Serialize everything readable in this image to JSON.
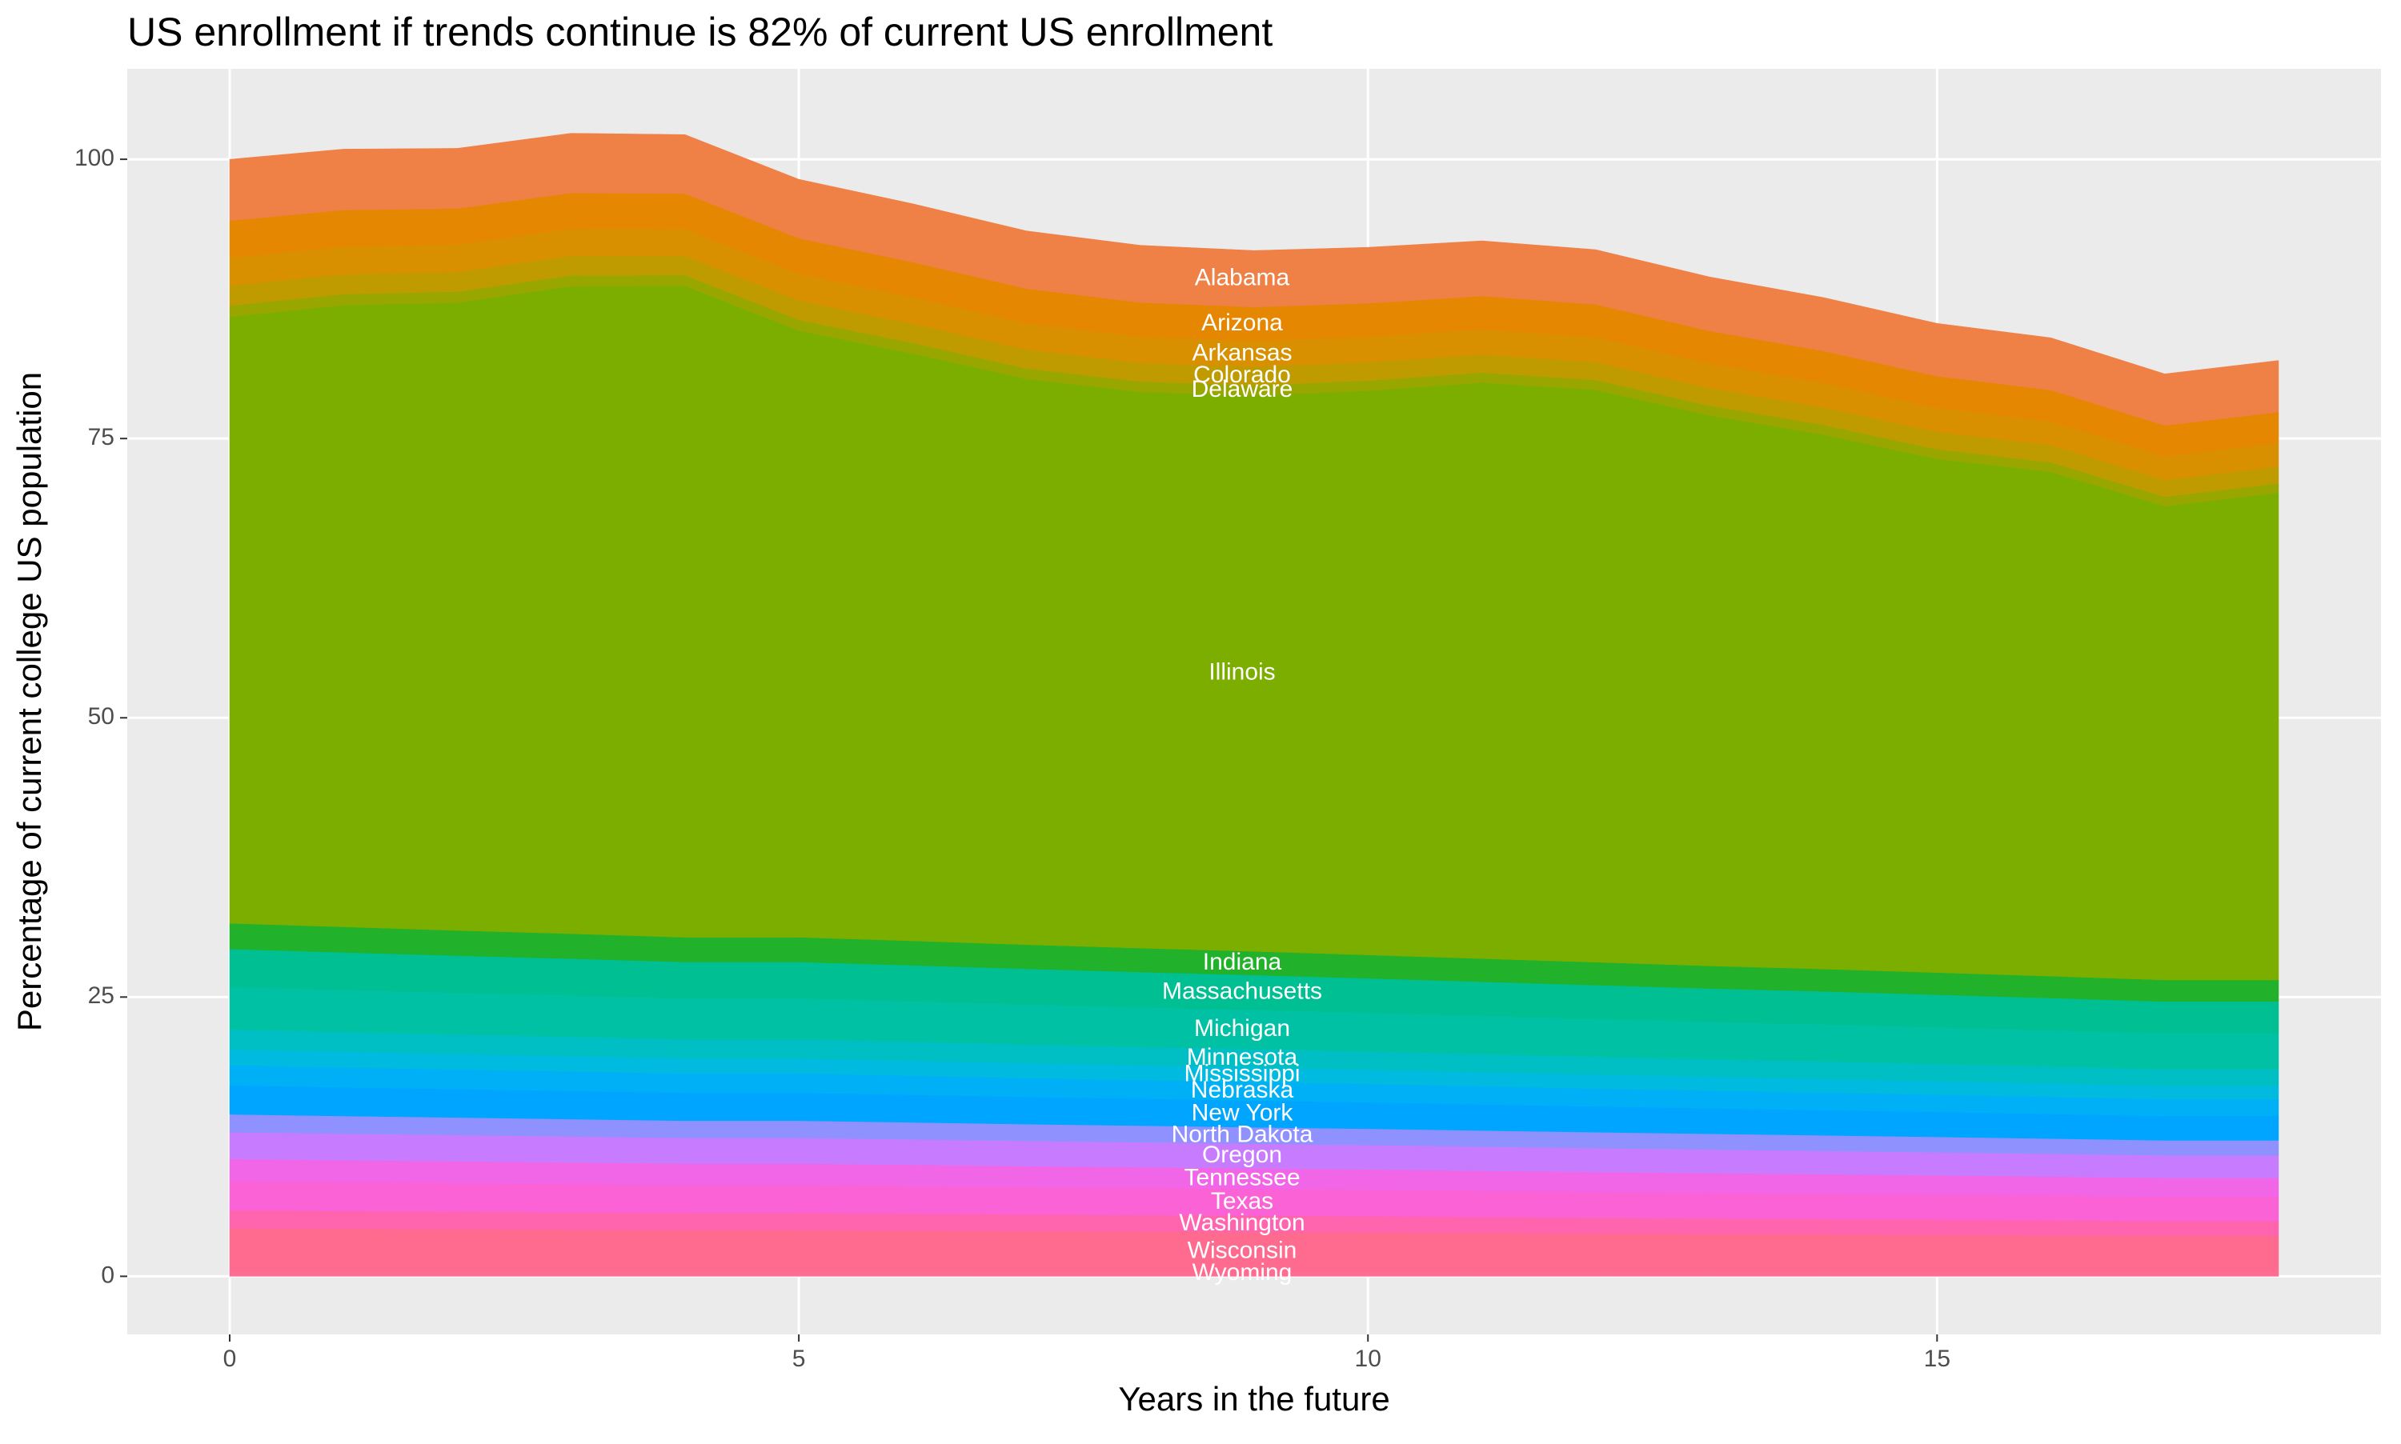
{
  "chart_data": {
    "type": "stacked_area",
    "title": "US enrollment if trends continue is 82% of current US enrollment",
    "x_label": "Years in the future",
    "y_label": "Percentage of current college US population",
    "x": [
      0,
      1,
      2,
      3,
      4,
      5,
      6,
      7,
      8,
      9,
      10,
      11,
      12,
      13,
      14,
      15,
      16,
      17,
      18
    ],
    "xlim": [
      -0.9,
      18.9
    ],
    "xticks": [
      0,
      5,
      10,
      15
    ],
    "ylim": [
      -5.2,
      108.1
    ],
    "yticks": [
      0,
      25,
      50,
      75,
      100
    ],
    "grid": true,
    "series": [
      {
        "name": "Wyoming",
        "color": "#FF6C91",
        "values": [
          0.5,
          0.5,
          0.5,
          0.49,
          0.48,
          0.48,
          0.48,
          0.47,
          0.47,
          0.46,
          0.46,
          0.45,
          0.45,
          0.44,
          0.44,
          0.43,
          0.43,
          0.42,
          0.42
        ]
      },
      {
        "name": "Wisconsin",
        "color": "#FF6B8F",
        "values": [
          3.8,
          3.76,
          3.72,
          3.69,
          3.65,
          3.65,
          3.61,
          3.57,
          3.53,
          3.5,
          3.46,
          3.42,
          3.38,
          3.34,
          3.31,
          3.27,
          3.23,
          3.19,
          3.19
        ]
      },
      {
        "name": "Washington",
        "color": "#FF65AE",
        "values": [
          1.6,
          1.58,
          1.57,
          1.55,
          1.54,
          1.54,
          1.52,
          1.5,
          1.49,
          1.47,
          1.46,
          1.44,
          1.42,
          1.41,
          1.39,
          1.38,
          1.36,
          1.34,
          1.34
        ]
      },
      {
        "name": "Texas",
        "color": "#FA62D6",
        "values": [
          2.6,
          2.57,
          2.55,
          2.52,
          2.5,
          2.5,
          2.47,
          2.44,
          2.42,
          2.39,
          2.37,
          2.34,
          2.31,
          2.29,
          2.26,
          2.24,
          2.21,
          2.18,
          2.18
        ]
      },
      {
        "name": "Tennessee",
        "color": "#F066E6",
        "values": [
          2,
          1.98,
          1.96,
          1.94,
          1.92,
          1.92,
          1.9,
          1.88,
          1.86,
          1.84,
          1.82,
          1.8,
          1.78,
          1.76,
          1.74,
          1.72,
          1.7,
          1.68,
          1.68
        ]
      },
      {
        "name": "Oregon",
        "color": "#C77CFF",
        "values": [
          2.4,
          2.38,
          2.35,
          2.33,
          2.3,
          2.3,
          2.28,
          2.26,
          2.23,
          2.21,
          2.18,
          2.16,
          2.14,
          2.11,
          2.09,
          2.06,
          2.04,
          2.02,
          2.02
        ]
      },
      {
        "name": "North Dakota",
        "color": "#8F91FF",
        "values": [
          1.6,
          1.58,
          1.57,
          1.55,
          1.54,
          1.54,
          1.52,
          1.5,
          1.49,
          1.47,
          1.46,
          1.44,
          1.42,
          1.41,
          1.39,
          1.38,
          1.36,
          1.34,
          1.34
        ]
      },
      {
        "name": "New York",
        "color": "#00A5FF",
        "values": [
          2.6,
          2.57,
          2.55,
          2.52,
          2.5,
          2.5,
          2.47,
          2.44,
          2.42,
          2.39,
          2.37,
          2.34,
          2.31,
          2.29,
          2.26,
          2.24,
          2.21,
          2.18,
          2.18
        ]
      },
      {
        "name": "Nebraska",
        "color": "#00B0F6",
        "values": [
          1.8,
          1.78,
          1.76,
          1.75,
          1.73,
          1.73,
          1.71,
          1.69,
          1.67,
          1.66,
          1.64,
          1.62,
          1.6,
          1.58,
          1.57,
          1.55,
          1.53,
          1.51,
          1.51
        ]
      },
      {
        "name": "Mississippi",
        "color": "#00BAE0",
        "values": [
          1.4,
          1.39,
          1.37,
          1.36,
          1.34,
          1.34,
          1.33,
          1.32,
          1.3,
          1.29,
          1.27,
          1.26,
          1.25,
          1.23,
          1.22,
          1.2,
          1.19,
          1.18,
          1.18
        ]
      },
      {
        "name": "Minnesota",
        "color": "#00BFC4",
        "values": [
          1.8,
          1.78,
          1.76,
          1.75,
          1.73,
          1.73,
          1.71,
          1.69,
          1.67,
          1.66,
          1.64,
          1.62,
          1.6,
          1.58,
          1.57,
          1.55,
          1.53,
          1.51,
          1.51
        ]
      },
      {
        "name": "Michigan",
        "color": "#00C1A3",
        "values": [
          3.8,
          3.76,
          3.72,
          3.69,
          3.65,
          3.65,
          3.61,
          3.57,
          3.53,
          3.5,
          3.46,
          3.42,
          3.38,
          3.34,
          3.31,
          3.27,
          3.23,
          3.19,
          3.19
        ]
      },
      {
        "name": "Massachusetts",
        "color": "#00BF92",
        "values": [
          3.4,
          3.37,
          3.33,
          3.3,
          3.26,
          3.26,
          3.23,
          3.2,
          3.16,
          3.13,
          3.09,
          3.06,
          3.03,
          2.99,
          2.96,
          2.92,
          2.89,
          2.86,
          2.86
        ]
      },
      {
        "name": "Indiana",
        "color": "#21B12A",
        "values": [
          2.3,
          2.28,
          2.25,
          2.23,
          2.21,
          2.21,
          2.19,
          2.16,
          2.14,
          2.12,
          2.09,
          2.07,
          2.05,
          2.02,
          2,
          1.98,
          1.96,
          1.93,
          1.93
        ]
      },
      {
        "name": "Illinois",
        "color": "#7CAE00",
        "values": [
          54.3,
          55.66,
          56.21,
          57.97,
          58.32,
          54.32,
          52.58,
          50.65,
          49.8,
          49.76,
          50.51,
          51.57,
          51.23,
          49.28,
          47.84,
          45.99,
          45.15,
          42.42,
          43.62
        ]
      },
      {
        "name": "Delaware",
        "color": "#9AA600",
        "values": [
          1,
          0.99,
          0.98,
          0.97,
          0.96,
          0.96,
          0.95,
          0.94,
          0.93,
          0.92,
          0.91,
          0.9,
          0.89,
          0.88,
          0.87,
          0.86,
          0.85,
          0.84,
          0.84
        ]
      },
      {
        "name": "Colorado",
        "color": "#C09B00",
        "values": [
          1.8,
          1.78,
          1.76,
          1.75,
          1.73,
          1.73,
          1.71,
          1.69,
          1.67,
          1.66,
          1.64,
          1.62,
          1.6,
          1.58,
          1.57,
          1.55,
          1.53,
          1.51,
          1.51
        ]
      },
      {
        "name": "Arkansas",
        "color": "#D89000",
        "values": [
          2.5,
          2.48,
          2.45,
          2.43,
          2.4,
          2.4,
          2.38,
          2.35,
          2.33,
          2.3,
          2.28,
          2.25,
          2.23,
          2.2,
          2.18,
          2.15,
          2.13,
          2.1,
          2.1
        ]
      },
      {
        "name": "Arizona",
        "color": "#E58700",
        "values": [
          3.3,
          3.27,
          3.23,
          3.2,
          3.17,
          3.17,
          3.14,
          3.1,
          3.07,
          3.04,
          3,
          2.97,
          2.94,
          2.9,
          2.87,
          2.84,
          2.81,
          2.77,
          2.77
        ]
      },
      {
        "name": "Alabama",
        "color": "#EF8046",
        "values": [
          5.5,
          5.45,
          5.39,
          5.34,
          5.28,
          5.28,
          5.23,
          5.17,
          5.12,
          5.06,
          5.01,
          4.95,
          4.9,
          4.84,
          4.79,
          4.73,
          4.68,
          4.62,
          4.62
        ]
      }
    ]
  }
}
